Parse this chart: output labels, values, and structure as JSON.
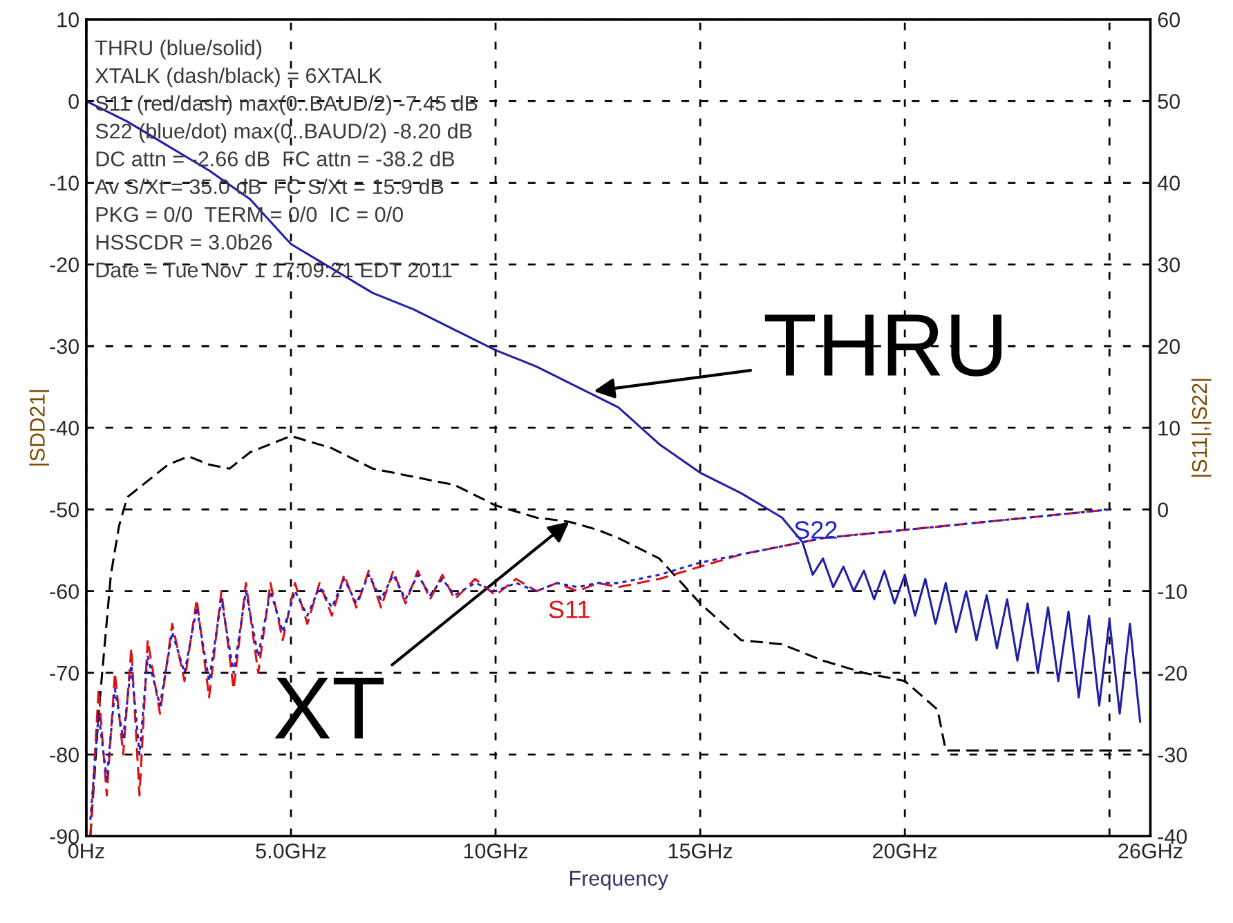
{
  "chart_data": {
    "type": "line",
    "xlabel": "Frequency",
    "ylabel": "|SDD21|",
    "y2label": "|S11|,|S22|",
    "xlim": [
      0,
      26
    ],
    "xticks": [
      {
        "value": 0,
        "label": "0Hz"
      },
      {
        "value": 5,
        "label": "5.0GHz"
      },
      {
        "value": 10,
        "label": "10GHz"
      },
      {
        "value": 15,
        "label": "15GHz"
      },
      {
        "value": 20,
        "label": "20GHz"
      },
      {
        "value": 25,
        "label": null
      },
      {
        "value": 26,
        "label": "26GHz"
      }
    ],
    "ylim": [
      -90,
      10
    ],
    "yticks": [
      -90,
      -80,
      -70,
      -60,
      -50,
      -40,
      -30,
      -20,
      -10,
      0,
      10
    ],
    "y2lim": [
      -40,
      60
    ],
    "y2ticks": [
      -40,
      -30,
      -20,
      -10,
      0,
      10,
      20,
      30,
      40,
      50,
      60
    ],
    "grid": true,
    "marker": "none",
    "annotations": [
      "THRU (blue/solid)",
      "XTALK (dash/black) = 6XTALK",
      "S11 (red/dash) max(0..BAUD/2) -7.45 dB",
      "S22 (blue/dot) max(0..BAUD/2) -8.20 dB",
      "DC attn = -2.66 dB  FC attn = -38.2 dB",
      "Av S/Xt = 35.0 dB  FC S/Xt = 15.9 dB",
      "PKG = 0/0  TERM = 0/0  IC = 0/0",
      "HSSCDR = 3.0b26",
      "Date = Tue Nov  1 17:09:21 EDT 2011",
      {
        "text": "THRU",
        "x": 12.4,
        "y": -35.5
      },
      {
        "text": "XT",
        "x": 11.8,
        "y": -51.5
      }
    ],
    "series": [
      {
        "color": "#1f1fa8",
        "line_style": "solid",
        "x": [
          0,
          1,
          2,
          3,
          4,
          5,
          6,
          7,
          8,
          9,
          10,
          11,
          12,
          13,
          14,
          15,
          16,
          17,
          17.5,
          17.75,
          18,
          18.25,
          18.5,
          18.75,
          19,
          19.25,
          19.5,
          19.75,
          20,
          20.25,
          20.5,
          20.75,
          21,
          21.25,
          21.5,
          21.75,
          22,
          22.25,
          22.5,
          22.75,
          23,
          23.25,
          23.5,
          23.75,
          24,
          24.25,
          24.5,
          24.75,
          25,
          25.25,
          25.5,
          25.75
        ],
        "values": [
          0,
          -2.5,
          -5.5,
          -8.5,
          -12,
          -17.5,
          -20.5,
          -23.5,
          -25.5,
          -28,
          -30.5,
          -32.5,
          -35,
          -37.5,
          -42,
          -45.5,
          -48,
          -51,
          -54,
          -58,
          -56,
          -59.5,
          -57,
          -60,
          -57.5,
          -61,
          -57.5,
          -61.5,
          -58,
          -63,
          -58.5,
          -64,
          -59,
          -65,
          -60,
          -66,
          -60.5,
          -67,
          -61,
          -68.5,
          -61.5,
          -70,
          -62,
          -71,
          -62.5,
          -73,
          -63,
          -74,
          -63.5,
          -75,
          -64,
          -76
        ]
      },
      {
        "color": "#000000",
        "line_style": "dashed",
        "x": [
          0.1,
          0.3,
          0.6,
          0.8,
          1,
          1.5,
          2,
          2.5,
          3,
          3.5,
          4,
          4.5,
          5,
          6,
          7,
          8,
          9,
          10,
          11,
          11.8,
          12.5,
          13,
          14,
          15,
          16,
          17,
          18,
          19,
          20,
          20.8,
          21,
          25.8
        ],
        "values": [
          -90,
          -75,
          -58,
          -52,
          -48.5,
          -46.5,
          -44.5,
          -43.5,
          -44.5,
          -45,
          -43,
          -42,
          -41,
          -42.5,
          -45,
          -46,
          -47,
          -49.5,
          -51,
          -51.5,
          -52.5,
          -53.5,
          -56,
          -61.5,
          -66,
          -66.5,
          -68.5,
          -70,
          -71,
          -74.5,
          -79.5,
          -79.5
        ]
      },
      {
        "name": "S11",
        "axis": "y2",
        "color": "#e01010",
        "line_style": "dashed",
        "x": [
          0.1,
          0.3,
          0.5,
          0.7,
          0.9,
          1.1,
          1.3,
          1.5,
          1.8,
          2.1,
          2.4,
          2.7,
          3.0,
          3.3,
          3.6,
          3.9,
          4.2,
          4.5,
          4.8,
          5.1,
          5.4,
          5.7,
          6.0,
          6.3,
          6.6,
          6.9,
          7.2,
          7.5,
          7.8,
          8.1,
          8.4,
          8.7,
          9.0,
          9.5,
          10,
          10.5,
          11,
          11.5,
          12,
          12.5,
          13,
          14,
          15,
          16,
          17,
          18,
          19,
          20,
          21,
          22,
          23,
          24,
          25
        ],
        "values": [
          -40,
          -22,
          -35,
          -20,
          -30,
          -17,
          -35,
          -16,
          -25,
          -14,
          -21,
          -11,
          -23,
          -10,
          -22,
          -9,
          -20,
          -9,
          -16,
          -9,
          -14,
          -9,
          -13,
          -8,
          -12,
          -7.5,
          -12,
          -7.5,
          -11.5,
          -7.5,
          -11,
          -8,
          -11,
          -8.5,
          -10.5,
          -8.5,
          -10,
          -9,
          -10,
          -9,
          -9.5,
          -8.5,
          -7,
          -5.5,
          -4.5,
          -3.5,
          -3,
          -2.5,
          -2,
          -1.5,
          -1,
          -0.5,
          0
        ]
      },
      {
        "name": "S22",
        "axis": "y2",
        "color": "#2020d0",
        "line_style": "dotted",
        "x": [
          0.1,
          0.3,
          0.5,
          0.7,
          0.9,
          1.1,
          1.3,
          1.5,
          1.8,
          2.1,
          2.4,
          2.7,
          3.0,
          3.3,
          3.6,
          3.9,
          4.2,
          4.5,
          4.8,
          5.1,
          5.4,
          5.7,
          6.0,
          6.3,
          6.6,
          6.9,
          7.2,
          7.5,
          7.8,
          8.1,
          8.4,
          8.7,
          9.0,
          9.5,
          10,
          10.5,
          11,
          11.5,
          12,
          12.5,
          13,
          14,
          15,
          16,
          17,
          18,
          19,
          20,
          21,
          22,
          23,
          24,
          25
        ],
        "values": [
          -38,
          -25,
          -33,
          -22,
          -28,
          -19,
          -30,
          -18,
          -24,
          -15,
          -20,
          -12,
          -21,
          -11,
          -20,
          -10,
          -18,
          -10,
          -15,
          -10,
          -13,
          -9.5,
          -12,
          -8.5,
          -11.5,
          -8,
          -11,
          -8,
          -11,
          -8,
          -10.5,
          -8.5,
          -10.5,
          -9,
          -10,
          -9,
          -10,
          -9,
          -9.5,
          -9,
          -9,
          -8,
          -6.5,
          -5.5,
          -4.5,
          -3.5,
          -3,
          -2.5,
          -2,
          -1.5,
          -1,
          -0.5,
          0
        ]
      }
    ]
  }
}
